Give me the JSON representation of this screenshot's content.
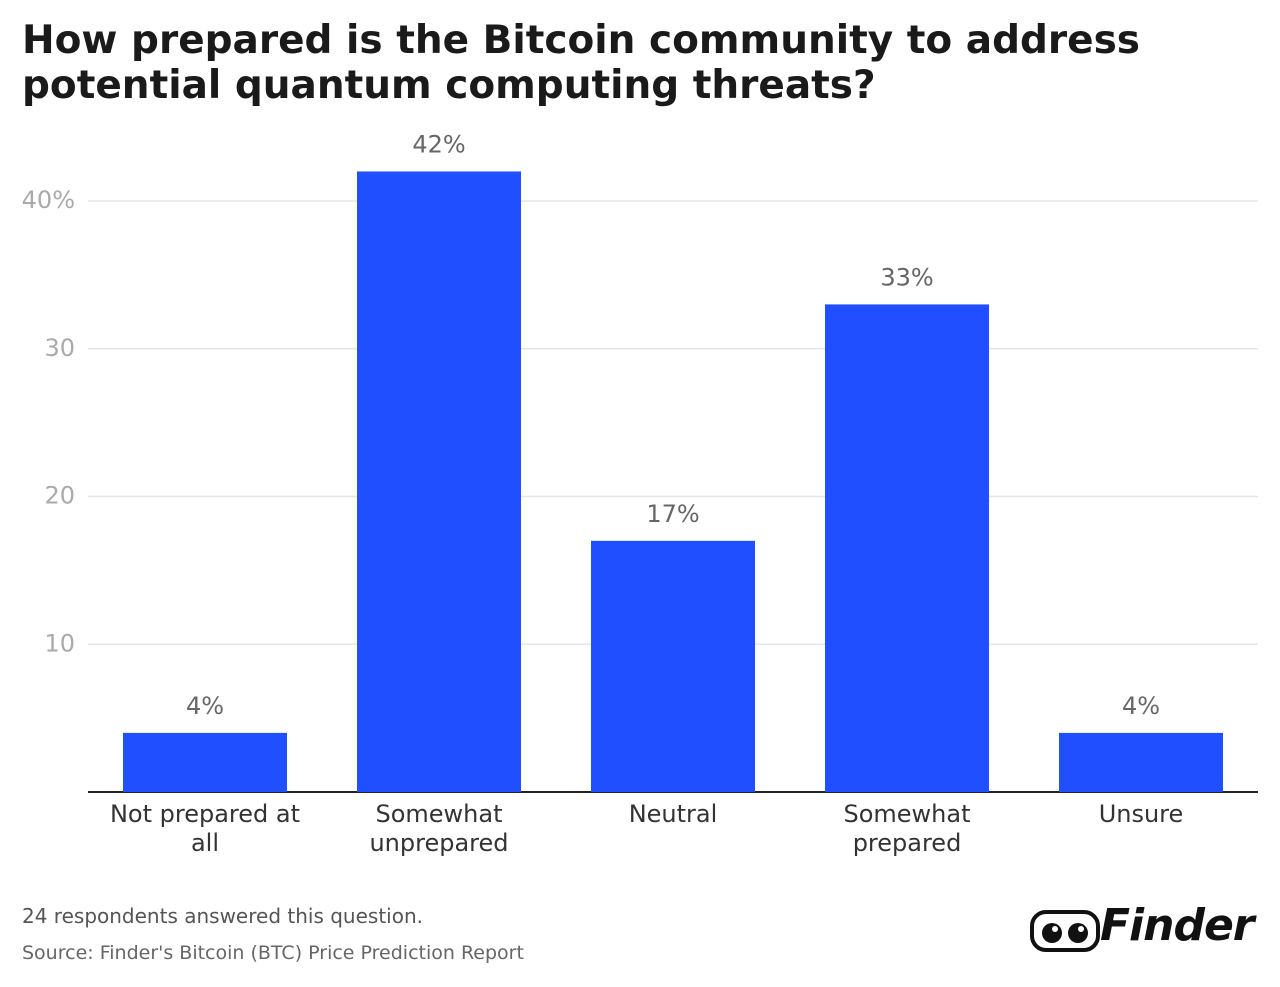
{
  "chart_data": {
    "type": "bar",
    "title": "How prepared is the Bitcoin community to address potential quantum computing threats?",
    "categories": [
      "Not prepared at all",
      "Somewhat unprepared",
      "Neutral",
      "Somewhat prepared",
      "Unsure"
    ],
    "values": [
      4,
      42,
      17,
      33,
      4
    ],
    "value_labels": [
      "4%",
      "42%",
      "17%",
      "33%",
      "4%"
    ],
    "color": "#1f4fff",
    "ylim": [
      0,
      42
    ],
    "yticks": [
      10,
      20,
      30,
      {
        "value": 40,
        "label": "40%"
      }
    ],
    "grid": true,
    "note": "24 respondents answered this question.",
    "source": "Source: Finder's Bitcoin (BTC) Price Prediction Report",
    "brand": "Finder"
  }
}
